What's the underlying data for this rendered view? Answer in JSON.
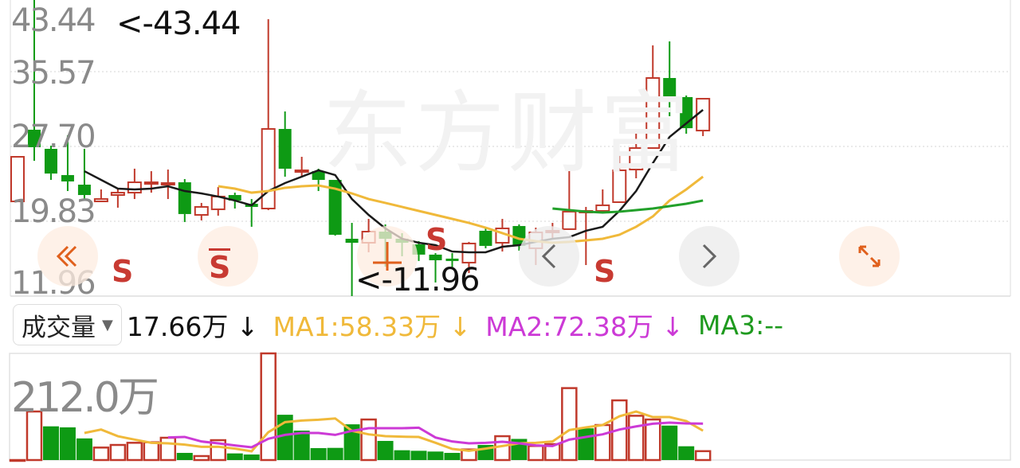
{
  "watermark": "东方财富",
  "price_axis": {
    "labels": [
      "43.44",
      "35.57",
      "27.70",
      "19.83",
      "11.96"
    ]
  },
  "markers": {
    "high": "<-43.44",
    "low": "<-11.96"
  },
  "signals": [
    "S",
    "S",
    "S",
    "S"
  ],
  "volume_header": {
    "selector_label": "成交量",
    "current": "17.66万 ↓",
    "ma1": "MA1:58.33万 ↓",
    "ma2": "MA2:72.38万 ↓",
    "ma3": "MA3:--"
  },
  "volume_scale_label": "212.0万",
  "colors": {
    "up": "#c0392b",
    "down": "#0e9a14",
    "ma_black": "#1a1a1a",
    "ma_yellow": "#f0b93a",
    "ma_green": "#22a02a",
    "vol_ma1": "#f0b93a",
    "vol_ma2": "#cc3ad6",
    "ma3": "#1e9a1e",
    "accent": "#e0601c"
  },
  "controls": {
    "rewind": "double-chevron-left-icon",
    "prev": "chevron-left-icon",
    "next": "chevron-right-icon",
    "fullscreen": "expand-icon",
    "crosshair": "crosshair-icon"
  },
  "chart_data": [
    {
      "type": "candlestick",
      "ylim": [
        11.96,
        43.44
      ],
      "yticks": [
        43.44,
        35.57,
        27.7,
        19.83,
        11.96
      ],
      "grid": true,
      "candles": [
        [
          21.92,
          26.61,
          26.61,
          21.92
        ],
        [
          29.46,
          27.62,
          43.44,
          26.19
        ],
        [
          27.45,
          24.85,
          27.78,
          24.18
        ],
        [
          24.69,
          24.02,
          28.87,
          23.01
        ],
        [
          23.68,
          22.59,
          27.45,
          22.17
        ],
        [
          21.92,
          22.17,
          23.18,
          21.92
        ],
        [
          22.59,
          22.84,
          23.26,
          21.26
        ],
        [
          22.84,
          23.93,
          25.36,
          22.17
        ],
        [
          23.93,
          23.93,
          25.1,
          22.84
        ],
        [
          23.85,
          23.85,
          25.27,
          22.17
        ],
        [
          23.93,
          20.59,
          24.27,
          19.75
        ],
        [
          20.5,
          21.34,
          21.76,
          19.92
        ],
        [
          21.09,
          22.43,
          23.43,
          20.42
        ],
        [
          22.59,
          22.01,
          22.84,
          21.17
        ],
        [
          21.67,
          21.34,
          22.17,
          19.25
        ],
        [
          21.17,
          29.54,
          41.09,
          21.0
        ],
        [
          29.54,
          25.36,
          31.38,
          24.52
        ],
        [
          25.19,
          25.19,
          26.61,
          24.52
        ],
        [
          25.1,
          24.18,
          25.36,
          23.01
        ],
        [
          24.18,
          18.41,
          24.18,
          18.32
        ],
        [
          17.99,
          17.57,
          19.66,
          11.96
        ],
        [
          17.57,
          18.74,
          20.08,
          16.57
        ],
        [
          18.74,
          17.99,
          19.5,
          15.06
        ],
        [
          17.99,
          17.57,
          18.58,
          16.15
        ],
        [
          17.4,
          16.32,
          17.74,
          15.65
        ],
        [
          16.32,
          15.73,
          16.48,
          13.39
        ],
        [
          15.9,
          15.65,
          16.48,
          14.81
        ],
        [
          15.48,
          17.49,
          17.66,
          14.39
        ],
        [
          18.83,
          17.24,
          19.16,
          16.99
        ],
        [
          17.57,
          19.08,
          20.08,
          16.65
        ],
        [
          19.33,
          17.24,
          19.5,
          16.73
        ],
        [
          16.99,
          18.66,
          19.16,
          15.23
        ],
        [
          18.83,
          18.83,
          19.66,
          17.99
        ],
        [
          19.0,
          20.84,
          25.77,
          19.0
        ],
        [
          20.92,
          20.92,
          21.34,
          15.23
        ],
        [
          20.92,
          21.51,
          23.18,
          20.67
        ],
        [
          21.84,
          25.19,
          27.03,
          21.76
        ],
        [
          25.27,
          27.53,
          29.04,
          24.35
        ],
        [
          27.53,
          34.9,
          38.33,
          27.45
        ],
        [
          34.9,
          32.89,
          38.75,
          30.88
        ],
        [
          32.89,
          29.62,
          33.06,
          29.04
        ],
        [
          29.37,
          32.72,
          32.72,
          28.79
        ]
      ],
      "candle_fields": [
        "open",
        "close",
        "high",
        "low"
      ],
      "lines": [
        {
          "color": "#1a1a1a",
          "start": 4,
          "values": [
            25.1,
            24.18,
            23.26,
            23.18,
            23.26,
            23.51,
            23.01,
            22.76,
            22.43,
            22.01,
            21.51,
            23.01,
            23.85,
            24.52,
            25.19,
            24.69,
            22.17,
            20.5,
            19.08,
            17.99,
            17.57,
            17.32,
            16.65,
            16.57,
            16.57,
            17.15,
            17.32,
            17.66,
            17.99,
            18.16,
            18.83,
            19.25,
            20.92,
            23.01,
            25.94,
            28.7,
            30.13,
            31.55
          ]
        },
        {
          "color": "#f0b93a",
          "start": 12,
          "values": [
            23.51,
            23.26,
            22.84,
            23.01,
            23.35,
            23.51,
            23.6,
            23.26,
            22.76,
            22.17,
            21.76,
            21.34,
            20.92,
            20.5,
            20.08,
            19.66,
            19.16,
            18.58,
            17.99,
            17.74,
            17.57,
            17.66,
            17.82,
            17.99,
            18.41,
            19.25,
            20.34,
            22.01,
            23.18,
            24.52
          ]
        },
        {
          "color": "#22a02a",
          "start": 32,
          "values": [
            21.17,
            21.0,
            20.84,
            20.75,
            20.84,
            21.0,
            21.17,
            21.42,
            21.67,
            22.01
          ]
        }
      ]
    },
    {
      "type": "bar",
      "ylim": [
        0,
        212.0
      ],
      "unit": "万",
      "volumes": [
        0,
        96.5,
        67,
        65,
        43,
        24.8,
        30,
        34.3,
        35.3,
        44.3,
        14.2,
        7.9,
        39.5,
        13.2,
        11,
        212.0,
        90,
        58.5,
        23.7,
        24.2,
        71,
        80.6,
        38,
        19.5,
        18.4,
        16.9,
        14.2,
        21,
        30,
        47.4,
        42,
        28,
        31.6,
        143,
        63,
        69.6,
        118.6,
        88,
        80.6,
        68.5,
        27.4,
        17.66
      ],
      "up": [
        true,
        true,
        false,
        false,
        false,
        true,
        true,
        true,
        true,
        true,
        false,
        true,
        true,
        false,
        false,
        true,
        false,
        false,
        false,
        false,
        false,
        true,
        false,
        false,
        false,
        false,
        false,
        true,
        false,
        true,
        false,
        true,
        true,
        true,
        false,
        true,
        true,
        true,
        true,
        false,
        false,
        true
      ],
      "lines": [
        {
          "name": "MA1",
          "color": "#f0b93a",
          "start": 4,
          "values": [
            53.8,
            60.6,
            47.4,
            40.6,
            34.3,
            33.2,
            30.6,
            26.4,
            26.4,
            22.7,
            17.4,
            55.3,
            75.4,
            78.5,
            80.1,
            82.7,
            58,
            51.1,
            47.4,
            46.4,
            45.8,
            34.3,
            22.1,
            18.4,
            22.7,
            27.9,
            33.2,
            34.3,
            36.9,
            59.6,
            64.8,
            69.6,
            87,
            96.4,
            85.4,
            85.4,
            77.5,
            58.33
          ]
        },
        {
          "name": "MA2",
          "color": "#cc3ad6",
          "start": 9,
          "values": [
            44.8,
            45.9,
            36.9,
            33.2,
            29,
            25.3,
            42.2,
            50,
            53.8,
            53.8,
            50,
            58,
            63.2,
            63.2,
            63.2,
            64.3,
            44.8,
            36.9,
            33.2,
            34.3,
            36.4,
            33.2,
            29,
            27.9,
            40.6,
            45.9,
            51.1,
            60.6,
            66.9,
            72.2,
            74.3,
            72.7,
            72.38
          ]
        }
      ]
    }
  ]
}
